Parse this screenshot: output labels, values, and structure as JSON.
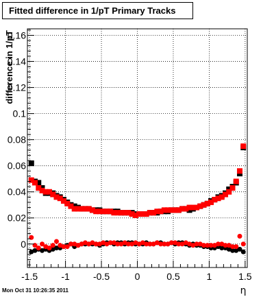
{
  "chart_data": {
    "type": "scatter",
    "title": "Fitted difference in 1/pT  Primary Tracks",
    "xlabel": "η",
    "ylabel": "difference in 1/pT",
    "xlim": [
      -1.53,
      1.53
    ],
    "ylim": [
      -0.018,
      0.165
    ],
    "x_ticks": [
      -1.5,
      -1,
      -0.5,
      0,
      0.5,
      1,
      1.5
    ],
    "x_tick_labels": [
      "-1.5",
      "-1",
      "-0.5",
      "0",
      "0.5",
      "1",
      "1.5"
    ],
    "y_ticks": [
      0,
      0.02,
      0.04,
      0.06,
      0.08,
      0.1,
      0.12,
      0.14,
      0.16
    ],
    "y_tick_labels": [
      "0",
      "0.02",
      "0.04",
      "0.06",
      "0.08",
      "0.1",
      "0.12",
      "0.14",
      "0.16"
    ],
    "grid": true,
    "series": [
      {
        "marker": "square",
        "color": "#000000",
        "x": [
          -1.475,
          -1.425,
          -1.375,
          -1.325,
          -1.275,
          -1.225,
          -1.175,
          -1.125,
          -1.075,
          -1.025,
          -0.975,
          -0.925,
          -0.875,
          -0.825,
          -0.775,
          -0.725,
          -0.675,
          -0.625,
          -0.575,
          -0.525,
          -0.475,
          -0.425,
          -0.375,
          -0.325,
          -0.275,
          -0.225,
          -0.175,
          -0.125,
          -0.075,
          -0.025,
          0.025,
          0.075,
          0.125,
          0.175,
          0.225,
          0.275,
          0.325,
          0.375,
          0.425,
          0.475,
          0.525,
          0.575,
          0.625,
          0.675,
          0.725,
          0.775,
          0.825,
          0.875,
          0.925,
          0.975,
          1.025,
          1.075,
          1.125,
          1.175,
          1.225,
          1.275,
          1.325,
          1.375,
          1.425,
          1.475
        ],
        "y": [
          0.062,
          0.048,
          0.047,
          0.043,
          0.039,
          0.039,
          0.039,
          0.037,
          0.036,
          0.034,
          0.032,
          0.03,
          0.029,
          0.028,
          0.027,
          0.027,
          0.027,
          0.026,
          0.026,
          0.026,
          0.025,
          0.025,
          0.025,
          0.025,
          0.025,
          0.024,
          0.024,
          0.024,
          0.024,
          0.023,
          0.023,
          0.023,
          0.023,
          0.024,
          0.024,
          0.024,
          0.025,
          0.025,
          0.025,
          0.026,
          0.026,
          0.026,
          0.027,
          0.027,
          0.026,
          0.027,
          0.028,
          0.029,
          0.03,
          0.031,
          0.033,
          0.034,
          0.036,
          0.037,
          0.039,
          0.042,
          0.044,
          0.047,
          0.054,
          0.074
        ]
      },
      {
        "marker": "square",
        "color": "#ff0000",
        "x": [
          -1.475,
          -1.425,
          -1.375,
          -1.325,
          -1.275,
          -1.225,
          -1.175,
          -1.125,
          -1.075,
          -1.025,
          -0.975,
          -0.925,
          -0.875,
          -0.825,
          -0.775,
          -0.725,
          -0.675,
          -0.625,
          -0.575,
          -0.525,
          -0.475,
          -0.425,
          -0.375,
          -0.325,
          -0.275,
          -0.225,
          -0.175,
          -0.125,
          -0.075,
          -0.025,
          0.025,
          0.075,
          0.125,
          0.175,
          0.225,
          0.275,
          0.325,
          0.375,
          0.425,
          0.475,
          0.525,
          0.575,
          0.625,
          0.675,
          0.725,
          0.775,
          0.825,
          0.875,
          0.925,
          0.975,
          1.025,
          1.075,
          1.125,
          1.175,
          1.225,
          1.275,
          1.325,
          1.375,
          1.425,
          1.475
        ],
        "y": [
          0.049,
          0.047,
          0.043,
          0.041,
          0.04,
          0.04,
          0.038,
          0.036,
          0.035,
          0.033,
          0.031,
          0.029,
          0.027,
          0.027,
          0.027,
          0.027,
          0.027,
          0.026,
          0.025,
          0.025,
          0.025,
          0.025,
          0.025,
          0.024,
          0.024,
          0.024,
          0.024,
          0.024,
          0.023,
          0.022,
          0.023,
          0.023,
          0.023,
          0.024,
          0.024,
          0.025,
          0.025,
          0.026,
          0.026,
          0.026,
          0.026,
          0.026,
          0.027,
          0.027,
          0.028,
          0.028,
          0.028,
          0.029,
          0.03,
          0.031,
          0.032,
          0.034,
          0.035,
          0.036,
          0.038,
          0.04,
          0.043,
          0.048,
          0.056,
          0.075
        ]
      },
      {
        "marker": "circle",
        "color": "#000000",
        "x": [
          -1.475,
          -1.425,
          -1.375,
          -1.325,
          -1.275,
          -1.225,
          -1.175,
          -1.125,
          -1.075,
          -1.025,
          -0.975,
          -0.925,
          -0.875,
          -0.825,
          -0.775,
          -0.725,
          -0.675,
          -0.625,
          -0.575,
          -0.525,
          -0.475,
          -0.425,
          -0.375,
          -0.325,
          -0.275,
          -0.225,
          -0.175,
          -0.125,
          -0.075,
          -0.025,
          0.025,
          0.075,
          0.125,
          0.175,
          0.225,
          0.275,
          0.325,
          0.375,
          0.425,
          0.475,
          0.525,
          0.575,
          0.625,
          0.675,
          0.725,
          0.775,
          0.825,
          0.875,
          0.925,
          0.975,
          1.025,
          1.075,
          1.125,
          1.175,
          1.225,
          1.275,
          1.325,
          1.375,
          1.425,
          1.475
        ],
        "y": [
          -0.006,
          -0.005,
          -0.004,
          -0.005,
          -0.004,
          -0.005,
          -0.004,
          -0.003,
          -0.003,
          -0.002,
          -0.001,
          0.0,
          -0.002,
          -0.001,
          0.0,
          0.0,
          0.0,
          0.0,
          0.0,
          -0.001,
          0.0,
          0.001,
          0.001,
          0.0,
          0.001,
          0.001,
          0.0,
          0.001,
          0.001,
          0.0,
          0.0,
          0.0,
          0.001,
          0.0,
          0.0,
          0.001,
          0.001,
          0.0,
          0.0,
          0.001,
          0.0,
          0.001,
          0.001,
          0.0,
          -0.001,
          0.0,
          -0.001,
          -0.001,
          -0.002,
          -0.002,
          -0.003,
          -0.003,
          -0.002,
          -0.003,
          -0.003,
          -0.004,
          -0.005,
          -0.005,
          -0.004,
          -0.006
        ]
      },
      {
        "marker": "circle",
        "color": "#ff0000",
        "x": [
          -1.475,
          -1.425,
          -1.375,
          -1.325,
          -1.275,
          -1.225,
          -1.175,
          -1.125,
          -1.075,
          -1.025,
          -0.975,
          -0.925,
          -0.875,
          -0.825,
          -0.775,
          -0.725,
          -0.675,
          -0.625,
          -0.575,
          -0.525,
          -0.475,
          -0.425,
          -0.375,
          -0.325,
          -0.275,
          -0.225,
          -0.175,
          -0.125,
          -0.075,
          -0.025,
          0.025,
          0.075,
          0.125,
          0.175,
          0.225,
          0.275,
          0.325,
          0.375,
          0.425,
          0.475,
          0.525,
          0.575,
          0.625,
          0.675,
          0.725,
          0.775,
          0.825,
          0.875,
          0.925,
          0.975,
          1.025,
          1.075,
          1.125,
          1.175,
          1.225,
          1.275,
          1.325,
          1.375,
          1.425,
          1.475
        ],
        "y": [
          0.005,
          -0.001,
          -0.003,
          0.0,
          -0.002,
          -0.003,
          -0.001,
          0.002,
          -0.001,
          -0.002,
          -0.002,
          0.0,
          0.0,
          -0.001,
          0.0,
          0.001,
          0.0,
          0.001,
          0.0,
          0.0,
          0.001,
          0.0,
          0.001,
          0.001,
          0.0,
          0.0,
          0.001,
          0.0,
          0.0,
          0.001,
          0.0,
          0.001,
          0.0,
          0.0,
          0.0,
          0.001,
          0.0,
          0.0,
          0.0,
          0.001,
          0.001,
          0.0,
          0.0,
          0.001,
          0.0,
          -0.001,
          0.0,
          0.0,
          -0.001,
          -0.001,
          -0.001,
          -0.001,
          0.0,
          0.0,
          -0.001,
          -0.001,
          -0.002,
          -0.002,
          0.006,
          0.0
        ]
      }
    ]
  },
  "footer": {
    "timestamp": "Mon Oct 31 10:26:35 2011"
  }
}
